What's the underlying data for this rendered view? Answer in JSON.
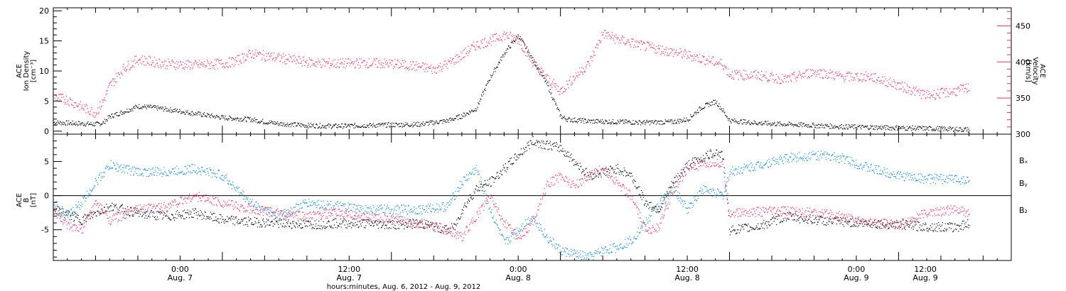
{
  "colors": {
    "black": "#000000",
    "pink": "#e8335f",
    "blue": "#1a86dd"
  },
  "chart_data": [
    {
      "type": "scatter",
      "panel": "top",
      "ylabel_left": [
        "ACE",
        "Ion Density",
        "[cm⁻³]"
      ],
      "ylabel_right": [
        "ACE",
        "Velocity",
        "[km/s]"
      ],
      "ylim_left": [
        -0.5,
        20.5
      ],
      "ylim_right": [
        300,
        475
      ],
      "yticks_left": [
        "0",
        "5",
        "10",
        "15",
        "20"
      ],
      "yticks_right": [
        "300",
        "350",
        "400",
        "450"
      ],
      "xlim_hours": [
        0,
        68
      ],
      "series": [
        {
          "name": "Ion Density",
          "axis": "left",
          "color": "#000000",
          "x": [
            0,
            1,
            2,
            3,
            3.5,
            4,
            5,
            6,
            7,
            8,
            10,
            12,
            14,
            15,
            16,
            18,
            20,
            22,
            24,
            26,
            27,
            28,
            29,
            30,
            31,
            32,
            33,
            34,
            35,
            36,
            36.5,
            37,
            38,
            40,
            42,
            44,
            45,
            46,
            47,
            47.5,
            48,
            50,
            52,
            54,
            56,
            58,
            60,
            62,
            64,
            65
          ],
          "y": [
            1.5,
            1.4,
            1.3,
            1.2,
            1.4,
            2.5,
            3.3,
            4.2,
            4.0,
            3.7,
            3.0,
            2.3,
            2.0,
            1.6,
            1.3,
            1.0,
            0.9,
            1.0,
            1.1,
            1.2,
            1.5,
            1.8,
            2.6,
            3.8,
            9.0,
            13.0,
            16.0,
            12.0,
            8.0,
            2.5,
            2.0,
            1.9,
            1.7,
            1.6,
            1.5,
            1.6,
            2.0,
            4.0,
            5.0,
            3.5,
            1.8,
            1.4,
            1.2,
            1.0,
            0.8,
            0.7,
            0.6,
            0.5,
            0.4,
            0.3
          ]
        },
        {
          "name": "Velocity",
          "axis": "right",
          "color": "#e8335f",
          "x": [
            0,
            1,
            2,
            3,
            3.5,
            4,
            5,
            6,
            8,
            10,
            12,
            13,
            14,
            16,
            18,
            20,
            22,
            24,
            26,
            27,
            28,
            29,
            30,
            31,
            32,
            33,
            34,
            35,
            36,
            37,
            38,
            39,
            40,
            42,
            44,
            45,
            46,
            47,
            47.5,
            48,
            50,
            52,
            54,
            56,
            58,
            60,
            62,
            64,
            65
          ],
          "y": [
            352,
            348,
            338,
            330,
            345,
            368,
            392,
            404,
            398,
            396,
            398,
            402,
            412,
            406,
            400,
            398,
            399,
            398,
            394,
            390,
            398,
            410,
            424,
            430,
            438,
            432,
            400,
            378,
            360,
            380,
            398,
            440,
            432,
            422,
            414,
            410,
            405,
            400,
            398,
            383,
            382,
            376,
            387,
            380,
            380,
            368,
            354,
            360,
            365
          ]
        }
      ]
    },
    {
      "type": "scatter",
      "panel": "bottom",
      "ylabel_left": [
        "ACE",
        "B",
        "[nT]"
      ],
      "ylim": [
        -9.5,
        9
      ],
      "yticks": [
        "-5",
        "0",
        "5"
      ],
      "zero_line": true,
      "xlim_hours": [
        0,
        68
      ],
      "xtick_labels": [
        "0:00",
        "Aug. 7",
        "12:00",
        "Aug. 7",
        "0:00",
        "Aug. 8",
        "12:00",
        "Aug. 8",
        "0:00",
        "Aug. 9",
        "12:00",
        "Aug. 9"
      ],
      "xlabel": "hours:minutes, Aug.  6, 2012 - Aug.  9, 2012",
      "legend": [
        "Bₓ",
        "Bᵧ",
        "B₂"
      ],
      "series": [
        {
          "name": "Bx",
          "color": "#000000",
          "x": [
            0,
            2,
            3,
            4,
            6,
            8,
            10,
            12,
            14,
            16,
            18,
            20,
            22,
            24,
            26,
            28,
            28.5,
            29,
            30,
            31,
            32,
            33,
            34,
            35,
            36,
            37,
            38,
            39,
            40,
            41,
            42,
            43,
            44,
            45,
            46,
            47,
            47.5,
            48,
            50,
            52,
            54,
            56,
            58,
            60,
            62,
            64,
            65
          ],
          "y": [
            -2.0,
            -3.5,
            -2.5,
            -1.5,
            -2.5,
            -3.0,
            -2.5,
            -3.5,
            -3.8,
            -4.0,
            -4.2,
            -4.0,
            -4.0,
            -4.2,
            -4.0,
            -5.0,
            -4.5,
            -2.0,
            1.0,
            2.0,
            4.0,
            6.0,
            8.0,
            7.5,
            7.0,
            5.0,
            3.0,
            3.5,
            4.0,
            3.0,
            -1.0,
            -2.0,
            2.0,
            4.5,
            5.5,
            6.5,
            6.0,
            -5.0,
            -4.5,
            -3.0,
            -3.5,
            -3.8,
            -4.0,
            -4.2,
            -4.5,
            -4.6,
            -4.0
          ]
        },
        {
          "name": "By",
          "color": "#1a86dd",
          "x": [
            0,
            1,
            2,
            3,
            4,
            6,
            8,
            10,
            12,
            14,
            16,
            18,
            20,
            22,
            24,
            26,
            28,
            29,
            30,
            31,
            32,
            33,
            34,
            35,
            36,
            37,
            38,
            39,
            40,
            41,
            42,
            43,
            44,
            45,
            46,
            47,
            47.5,
            48,
            50,
            52,
            54,
            56,
            58,
            60,
            62,
            64,
            65
          ],
          "y": [
            -1.0,
            -3.0,
            -1.0,
            2.0,
            4.5,
            3.5,
            3.5,
            4.0,
            3.0,
            -1.0,
            -3.0,
            -1.0,
            -1.5,
            -2.0,
            -2.0,
            -2.0,
            -1.5,
            2.0,
            4.0,
            -2.0,
            -7.0,
            -5.0,
            -3.0,
            -6.0,
            -8.0,
            -8.5,
            -9.0,
            -8.0,
            -7.5,
            -6.5,
            -4.0,
            -1.0,
            1.0,
            -2.0,
            1.0,
            0.5,
            0.0,
            3.5,
            4.5,
            5.5,
            6.0,
            5.5,
            4.0,
            3.0,
            2.5,
            2.5,
            2.3
          ]
        },
        {
          "name": "Bz",
          "color": "#e8335f",
          "x": [
            0,
            1,
            2,
            3,
            4,
            6,
            8,
            10,
            12,
            14,
            16,
            18,
            20,
            22,
            24,
            26,
            28,
            29,
            30,
            31,
            32,
            33,
            34,
            35,
            36,
            37,
            38,
            39,
            40,
            41,
            42,
            43,
            44,
            45,
            46,
            47,
            47.5,
            48,
            50,
            52,
            54,
            56,
            58,
            60,
            62,
            64,
            65
          ],
          "y": [
            -2.0,
            -4.5,
            -5.0,
            -1.0,
            -3.5,
            -2.0,
            -1.5,
            0.0,
            -1.0,
            -2.0,
            -2.5,
            -3.0,
            -2.5,
            -3.0,
            -3.5,
            -4.0,
            -5.0,
            -6.0,
            -3.0,
            0.0,
            -4.0,
            -6.0,
            -4.0,
            1.5,
            3.0,
            1.5,
            3.0,
            4.0,
            2.0,
            0.0,
            -5.0,
            -4.5,
            1.0,
            4.0,
            4.5,
            5.0,
            4.5,
            -2.5,
            -2.3,
            -2.2,
            -2.5,
            -3.0,
            -4.0,
            -4.2,
            -2.5,
            -2.0,
            -2.5
          ]
        }
      ]
    }
  ]
}
